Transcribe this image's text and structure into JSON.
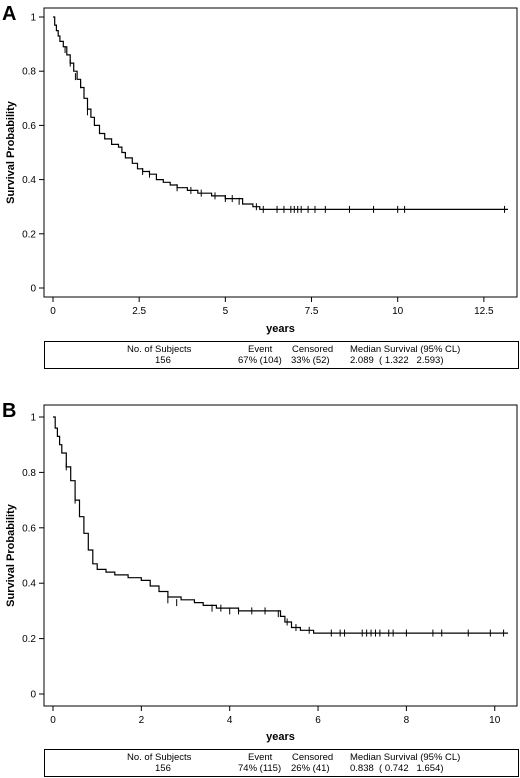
{
  "chart_data": [
    {
      "type": "line",
      "panel_label": "A",
      "xlabel": "years",
      "ylabel": "Survival Probability",
      "xlim": [
        0,
        13.2
      ],
      "ylim": [
        0,
        1
      ],
      "x_ticks": [
        0,
        2.5,
        5,
        7.5,
        10,
        12.5
      ],
      "x_tick_labels": [
        "0",
        "2.5",
        "5",
        "7.5",
        "10",
        "12.5"
      ],
      "y_ticks": [
        0,
        0.2,
        0.4,
        0.6,
        0.8,
        1
      ],
      "y_tick_labels": [
        "0",
        "0.2",
        "0.4",
        "0.6",
        "0.8",
        "1"
      ],
      "steps": [
        [
          0,
          1.0
        ],
        [
          0.05,
          0.97
        ],
        [
          0.1,
          0.95
        ],
        [
          0.15,
          0.93
        ],
        [
          0.2,
          0.91
        ],
        [
          0.3,
          0.89
        ],
        [
          0.4,
          0.86
        ],
        [
          0.5,
          0.83
        ],
        [
          0.6,
          0.8
        ],
        [
          0.7,
          0.77
        ],
        [
          0.8,
          0.74
        ],
        [
          0.9,
          0.7
        ],
        [
          1.0,
          0.66
        ],
        [
          1.1,
          0.63
        ],
        [
          1.2,
          0.6
        ],
        [
          1.35,
          0.57
        ],
        [
          1.5,
          0.55
        ],
        [
          1.7,
          0.53
        ],
        [
          1.9,
          0.52
        ],
        [
          2.0,
          0.5
        ],
        [
          2.1,
          0.48
        ],
        [
          2.3,
          0.46
        ],
        [
          2.45,
          0.44
        ],
        [
          2.6,
          0.43
        ],
        [
          2.8,
          0.42
        ],
        [
          3.0,
          0.4
        ],
        [
          3.2,
          0.39
        ],
        [
          3.4,
          0.38
        ],
        [
          3.6,
          0.37
        ],
        [
          3.9,
          0.36
        ],
        [
          4.2,
          0.35
        ],
        [
          4.6,
          0.34
        ],
        [
          5.0,
          0.33
        ],
        [
          5.5,
          0.31
        ],
        [
          5.8,
          0.3
        ],
        [
          6.0,
          0.29
        ],
        [
          13.2,
          0.29
        ]
      ],
      "censored": [
        [
          0.35,
          0.88
        ],
        [
          0.5,
          0.83
        ],
        [
          0.65,
          0.78
        ],
        [
          0.8,
          0.75
        ],
        [
          1.0,
          0.65
        ],
        [
          2.6,
          0.43
        ],
        [
          2.8,
          0.42
        ],
        [
          3.6,
          0.37
        ],
        [
          4.0,
          0.36
        ],
        [
          4.3,
          0.35
        ],
        [
          4.7,
          0.34
        ],
        [
          5.0,
          0.33
        ],
        [
          5.2,
          0.33
        ],
        [
          5.4,
          0.32
        ],
        [
          5.9,
          0.3
        ],
        [
          6.1,
          0.29
        ],
        [
          6.5,
          0.29
        ],
        [
          6.7,
          0.29
        ],
        [
          6.9,
          0.29
        ],
        [
          7.0,
          0.29
        ],
        [
          7.1,
          0.29
        ],
        [
          7.2,
          0.29
        ],
        [
          7.4,
          0.29
        ],
        [
          7.6,
          0.29
        ],
        [
          7.9,
          0.29
        ],
        [
          8.6,
          0.29
        ],
        [
          9.3,
          0.29
        ],
        [
          10.0,
          0.29
        ],
        [
          10.2,
          0.29
        ],
        [
          13.1,
          0.29
        ]
      ],
      "summary": {
        "headers": [
          "No. of Subjects",
          "Event",
          "Censored",
          "Median Survival (95% CL)"
        ],
        "values": [
          "156",
          "67% (104)",
          "33% (52)",
          "2.089  ( 1.322   2.593)"
        ]
      }
    },
    {
      "type": "line",
      "panel_label": "B",
      "xlabel": "years",
      "ylabel": "Survival Probability",
      "xlim": [
        0,
        10.3
      ],
      "ylim": [
        0,
        1
      ],
      "x_ticks": [
        0,
        2,
        4,
        6,
        8,
        10
      ],
      "x_tick_labels": [
        "0",
        "2",
        "4",
        "6",
        "8",
        "10"
      ],
      "y_ticks": [
        0,
        0.2,
        0.4,
        0.6,
        0.8,
        1
      ],
      "y_tick_labels": [
        "0",
        "0.2",
        "0.4",
        "0.6",
        "0.8",
        "1"
      ],
      "steps": [
        [
          0,
          1.0
        ],
        [
          0.05,
          0.96
        ],
        [
          0.1,
          0.93
        ],
        [
          0.15,
          0.9
        ],
        [
          0.2,
          0.87
        ],
        [
          0.3,
          0.82
        ],
        [
          0.4,
          0.77
        ],
        [
          0.5,
          0.7
        ],
        [
          0.6,
          0.64
        ],
        [
          0.7,
          0.58
        ],
        [
          0.8,
          0.52
        ],
        [
          0.9,
          0.47
        ],
        [
          1.0,
          0.45
        ],
        [
          1.2,
          0.44
        ],
        [
          1.4,
          0.43
        ],
        [
          1.7,
          0.42
        ],
        [
          2.0,
          0.41
        ],
        [
          2.2,
          0.39
        ],
        [
          2.4,
          0.37
        ],
        [
          2.6,
          0.35
        ],
        [
          2.9,
          0.34
        ],
        [
          3.2,
          0.33
        ],
        [
          3.4,
          0.32
        ],
        [
          3.7,
          0.31
        ],
        [
          4.2,
          0.3
        ],
        [
          5.0,
          0.3
        ],
        [
          5.15,
          0.28
        ],
        [
          5.25,
          0.26
        ],
        [
          5.4,
          0.24
        ],
        [
          5.6,
          0.23
        ],
        [
          5.9,
          0.22
        ],
        [
          10.3,
          0.22
        ]
      ],
      "censored": [
        [
          0.3,
          0.82
        ],
        [
          0.5,
          0.7
        ],
        [
          2.6,
          0.34
        ],
        [
          2.8,
          0.33
        ],
        [
          3.6,
          0.31
        ],
        [
          3.8,
          0.31
        ],
        [
          4.0,
          0.3
        ],
        [
          4.2,
          0.3
        ],
        [
          4.5,
          0.3
        ],
        [
          4.8,
          0.3
        ],
        [
          5.1,
          0.29
        ],
        [
          5.3,
          0.26
        ],
        [
          5.5,
          0.24
        ],
        [
          5.8,
          0.23
        ],
        [
          6.3,
          0.22
        ],
        [
          6.5,
          0.22
        ],
        [
          6.6,
          0.22
        ],
        [
          7.0,
          0.22
        ],
        [
          7.1,
          0.22
        ],
        [
          7.2,
          0.22
        ],
        [
          7.3,
          0.22
        ],
        [
          7.4,
          0.22
        ],
        [
          7.6,
          0.22
        ],
        [
          7.7,
          0.22
        ],
        [
          8.0,
          0.22
        ],
        [
          8.6,
          0.22
        ],
        [
          8.8,
          0.22
        ],
        [
          9.4,
          0.22
        ],
        [
          9.9,
          0.22
        ],
        [
          10.2,
          0.22
        ]
      ],
      "summary": {
        "headers": [
          "No. of Subjects",
          "Event",
          "Censored",
          "Median Survival (95% CL)"
        ],
        "values": [
          "156",
          "74% (115)",
          "26% (41)",
          "0.838  ( 0.742   1.654)"
        ]
      }
    }
  ]
}
